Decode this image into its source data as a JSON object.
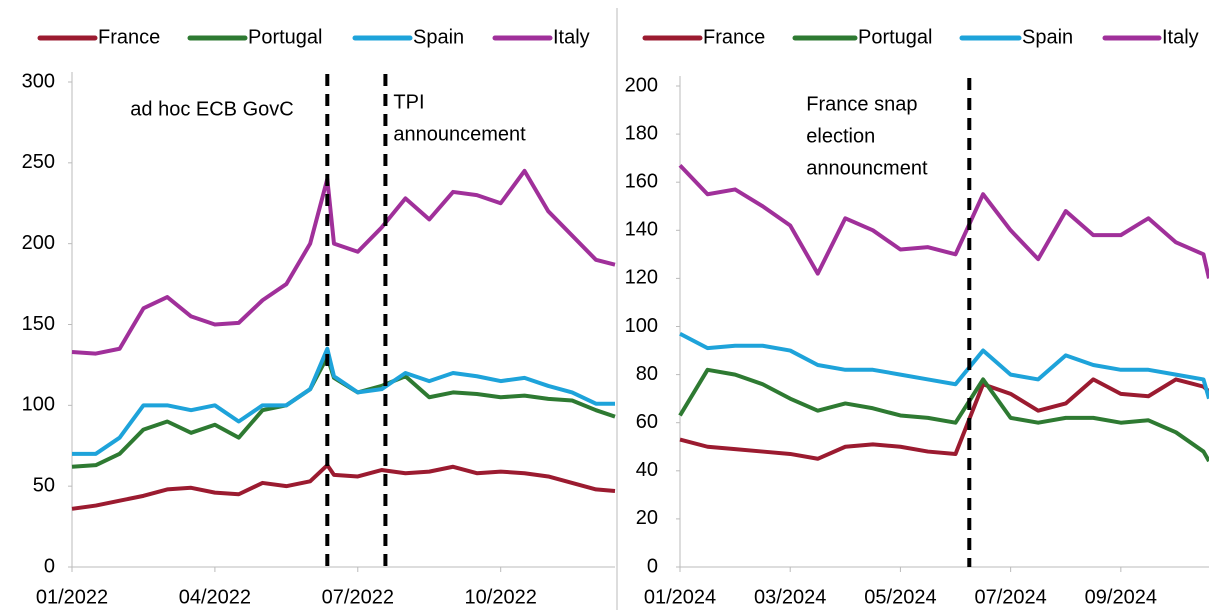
{
  "chart_data": [
    {
      "type": "line",
      "xlim": [
        0,
        11.4
      ],
      "xticks": [
        {
          "value": 0,
          "label": "01/2022"
        },
        {
          "value": 3,
          "label": "04/2022"
        },
        {
          "value": 6,
          "label": "07/2022"
        },
        {
          "value": 9,
          "label": "10/2022"
        }
      ],
      "ylim": [
        0,
        300
      ],
      "yticks": [
        0,
        50,
        100,
        150,
        200,
        250,
        300
      ],
      "x": [
        0,
        0.5,
        1,
        1.5,
        2,
        2.5,
        3,
        3.5,
        4,
        4.5,
        5,
        5.36,
        5.5,
        6,
        6.5,
        7,
        7.5,
        8,
        8.5,
        9,
        9.5,
        10,
        10.5,
        11,
        11.4
      ],
      "series": [
        {
          "name": "France",
          "color": "#9b1b30",
          "values": [
            36,
            38,
            41,
            44,
            48,
            49,
            46,
            45,
            52,
            50,
            53,
            63,
            57,
            56,
            60,
            58,
            59,
            62,
            58,
            59,
            58,
            56,
            52,
            48,
            47
          ]
        },
        {
          "name": "Portugal",
          "color": "#2e7a32",
          "values": [
            62,
            63,
            70,
            85,
            90,
            83,
            88,
            80,
            97,
            100,
            110,
            130,
            117,
            108,
            112,
            118,
            105,
            108,
            107,
            105,
            106,
            104,
            103,
            97,
            93
          ]
        },
        {
          "name": "Spain",
          "color": "#1ea3da",
          "values": [
            70,
            70,
            80,
            100,
            100,
            97,
            100,
            90,
            100,
            100,
            110,
            135,
            118,
            108,
            110,
            120,
            115,
            120,
            118,
            115,
            117,
            112,
            108,
            101,
            101
          ]
        },
        {
          "name": "Italy",
          "color": "#a0309a",
          "values": [
            133,
            132,
            135,
            160,
            167,
            155,
            150,
            151,
            165,
            175,
            200,
            240,
            200,
            195,
            210,
            228,
            215,
            232,
            230,
            225,
            245,
            220,
            205,
            190,
            187
          ]
        }
      ],
      "annotations": [
        {
          "x": 5.36,
          "text": [
            "ad hoc ECB GovC"
          ]
        },
        {
          "x": 6.58,
          "text": [
            "TPI",
            "announcement"
          ]
        }
      ]
    },
    {
      "type": "line",
      "xlim": [
        0,
        9.6
      ],
      "xticks": [
        {
          "value": 0,
          "label": "01/2024"
        },
        {
          "value": 2,
          "label": "03/2024"
        },
        {
          "value": 4,
          "label": "05/2024"
        },
        {
          "value": 6,
          "label": "07/2024"
        },
        {
          "value": 8,
          "label": "09/2024"
        }
      ],
      "ylim": [
        0,
        200
      ],
      "yticks": [
        0,
        20,
        40,
        60,
        80,
        100,
        120,
        140,
        160,
        180,
        200
      ],
      "x": [
        0,
        0.5,
        1,
        1.5,
        2,
        2.5,
        3,
        3.5,
        4,
        4.5,
        5,
        5.5,
        6,
        6.5,
        7,
        7.5,
        8,
        8.5,
        9,
        9.5,
        9.6
      ],
      "series": [
        {
          "name": "France",
          "color": "#9b1b30",
          "values": [
            53,
            50,
            49,
            48,
            47,
            45,
            50,
            51,
            50,
            48,
            47,
            76,
            72,
            65,
            68,
            78,
            72,
            71,
            78,
            75,
            73
          ]
        },
        {
          "name": "Portugal",
          "color": "#2e7a32",
          "values": [
            63,
            82,
            80,
            76,
            70,
            65,
            68,
            66,
            63,
            62,
            60,
            78,
            62,
            60,
            62,
            62,
            60,
            61,
            56,
            48,
            44
          ]
        },
        {
          "name": "Spain",
          "color": "#1ea3da",
          "values": [
            97,
            91,
            92,
            92,
            90,
            84,
            82,
            82,
            80,
            78,
            76,
            90,
            80,
            78,
            88,
            84,
            82,
            82,
            80,
            78,
            70
          ]
        },
        {
          "name": "Italy",
          "color": "#a0309a",
          "values": [
            167,
            155,
            157,
            150,
            142,
            122,
            145,
            140,
            132,
            133,
            130,
            155,
            140,
            128,
            148,
            138,
            138,
            145,
            135,
            130,
            120
          ]
        }
      ],
      "annotations": [
        {
          "x": 5.25,
          "text": [
            "France snap",
            "election",
            "announcment"
          ]
        }
      ]
    }
  ]
}
